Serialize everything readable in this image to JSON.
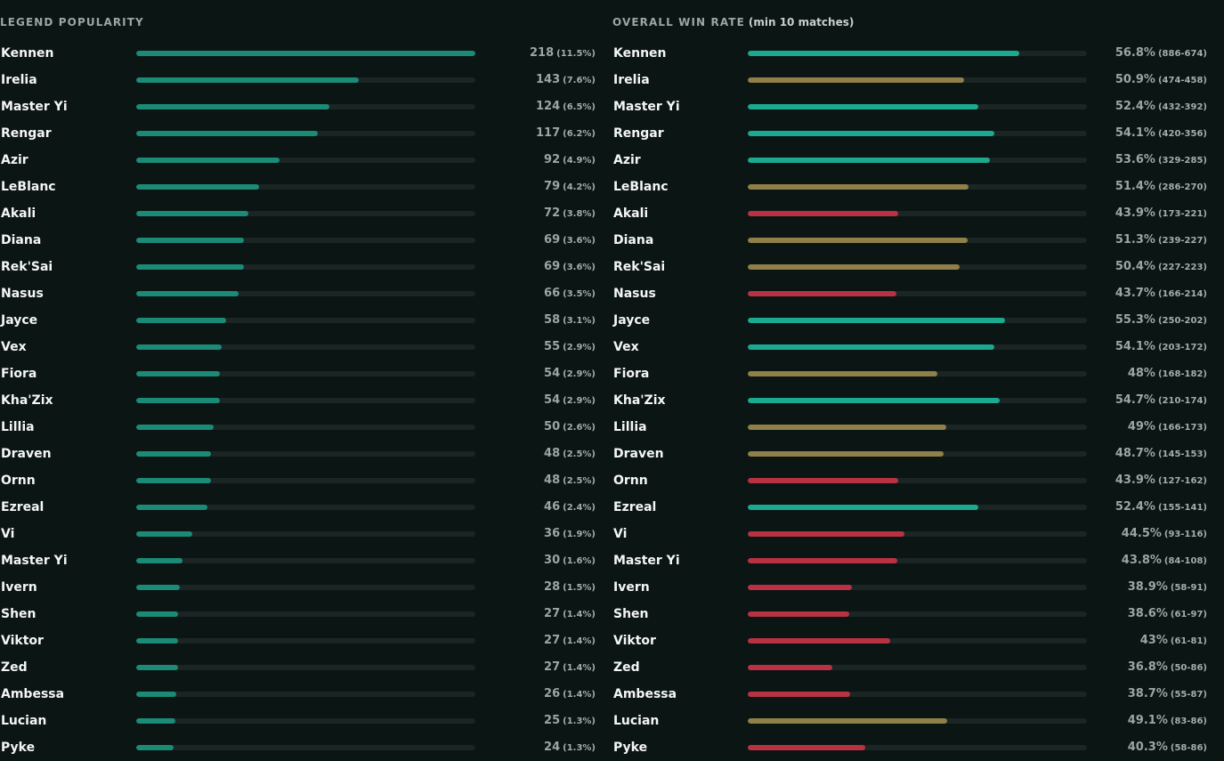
{
  "colors": {
    "background": "#0b1513",
    "track": "#1b2624",
    "popularity_bar": "#1b8a77",
    "win_high": "#1ba98f",
    "win_mid": "#8f7f48",
    "win_low": "#b83243"
  },
  "popularity": {
    "title": "LEGEND POPULARITY",
    "max_value": 218,
    "rows": [
      {
        "name": "Kennen",
        "value": 218,
        "count": "218",
        "pct": "(11.5%)"
      },
      {
        "name": "Irelia",
        "value": 143,
        "count": "143",
        "pct": "(7.6%)"
      },
      {
        "name": "Master Yi",
        "value": 124,
        "count": "124",
        "pct": "(6.5%)"
      },
      {
        "name": "Rengar",
        "value": 117,
        "count": "117",
        "pct": "(6.2%)"
      },
      {
        "name": "Azir",
        "value": 92,
        "count": "92",
        "pct": "(4.9%)"
      },
      {
        "name": "LeBlanc",
        "value": 79,
        "count": "79",
        "pct": "(4.2%)"
      },
      {
        "name": "Akali",
        "value": 72,
        "count": "72",
        "pct": "(3.8%)"
      },
      {
        "name": "Diana",
        "value": 69,
        "count": "69",
        "pct": "(3.6%)"
      },
      {
        "name": "Rek'Sai",
        "value": 69,
        "count": "69",
        "pct": "(3.6%)"
      },
      {
        "name": "Nasus",
        "value": 66,
        "count": "66",
        "pct": "(3.5%)"
      },
      {
        "name": "Jayce",
        "value": 58,
        "count": "58",
        "pct": "(3.1%)"
      },
      {
        "name": "Vex",
        "value": 55,
        "count": "55",
        "pct": "(2.9%)"
      },
      {
        "name": "Fiora",
        "value": 54,
        "count": "54",
        "pct": "(2.9%)"
      },
      {
        "name": "Kha'Zix",
        "value": 54,
        "count": "54",
        "pct": "(2.9%)"
      },
      {
        "name": "Lillia",
        "value": 50,
        "count": "50",
        "pct": "(2.6%)"
      },
      {
        "name": "Draven",
        "value": 48,
        "count": "48",
        "pct": "(2.5%)"
      },
      {
        "name": "Ornn",
        "value": 48,
        "count": "48",
        "pct": "(2.5%)"
      },
      {
        "name": "Ezreal",
        "value": 46,
        "count": "46",
        "pct": "(2.4%)"
      },
      {
        "name": "Vi",
        "value": 36,
        "count": "36",
        "pct": "(1.9%)"
      },
      {
        "name": "Master Yi",
        "value": 30,
        "count": "30",
        "pct": "(1.6%)"
      },
      {
        "name": "Ivern",
        "value": 28,
        "count": "28",
        "pct": "(1.5%)"
      },
      {
        "name": "Shen",
        "value": 27,
        "count": "27",
        "pct": "(1.4%)"
      },
      {
        "name": "Viktor",
        "value": 27,
        "count": "27",
        "pct": "(1.4%)"
      },
      {
        "name": "Zed",
        "value": 27,
        "count": "27",
        "pct": "(1.4%)"
      },
      {
        "name": "Ambessa",
        "value": 26,
        "count": "26",
        "pct": "(1.4%)"
      },
      {
        "name": "Lucian",
        "value": 25,
        "count": "25",
        "pct": "(1.3%)"
      },
      {
        "name": "Pyke",
        "value": 24,
        "count": "24",
        "pct": "(1.3%)"
      }
    ]
  },
  "winrate": {
    "title": "OVERALL WIN RATE",
    "subtitle": "(min 10 matches)",
    "rows": [
      {
        "name": "Kennen",
        "value": 56.8,
        "rate": "56.8%",
        "record": "(886-674)"
      },
      {
        "name": "Irelia",
        "value": 50.9,
        "rate": "50.9%",
        "record": "(474-458)"
      },
      {
        "name": "Master Yi",
        "value": 52.4,
        "rate": "52.4%",
        "record": "(432-392)"
      },
      {
        "name": "Rengar",
        "value": 54.1,
        "rate": "54.1%",
        "record": "(420-356)"
      },
      {
        "name": "Azir",
        "value": 53.6,
        "rate": "53.6%",
        "record": "(329-285)"
      },
      {
        "name": "LeBlanc",
        "value": 51.4,
        "rate": "51.4%",
        "record": "(286-270)"
      },
      {
        "name": "Akali",
        "value": 43.9,
        "rate": "43.9%",
        "record": "(173-221)"
      },
      {
        "name": "Diana",
        "value": 51.3,
        "rate": "51.3%",
        "record": "(239-227)"
      },
      {
        "name": "Rek'Sai",
        "value": 50.4,
        "rate": "50.4%",
        "record": "(227-223)"
      },
      {
        "name": "Nasus",
        "value": 43.7,
        "rate": "43.7%",
        "record": "(166-214)"
      },
      {
        "name": "Jayce",
        "value": 55.3,
        "rate": "55.3%",
        "record": "(250-202)"
      },
      {
        "name": "Vex",
        "value": 54.1,
        "rate": "54.1%",
        "record": "(203-172)"
      },
      {
        "name": "Fiora",
        "value": 48,
        "rate": "48%",
        "record": "(168-182)"
      },
      {
        "name": "Kha'Zix",
        "value": 54.7,
        "rate": "54.7%",
        "record": "(210-174)"
      },
      {
        "name": "Lillia",
        "value": 49,
        "rate": "49%",
        "record": "(166-173)"
      },
      {
        "name": "Draven",
        "value": 48.7,
        "rate": "48.7%",
        "record": "(145-153)"
      },
      {
        "name": "Ornn",
        "value": 43.9,
        "rate": "43.9%",
        "record": "(127-162)"
      },
      {
        "name": "Ezreal",
        "value": 52.4,
        "rate": "52.4%",
        "record": "(155-141)"
      },
      {
        "name": "Vi",
        "value": 44.5,
        "rate": "44.5%",
        "record": "(93-116)"
      },
      {
        "name": "Master Yi",
        "value": 43.8,
        "rate": "43.8%",
        "record": "(84-108)"
      },
      {
        "name": "Ivern",
        "value": 38.9,
        "rate": "38.9%",
        "record": "(58-91)"
      },
      {
        "name": "Shen",
        "value": 38.6,
        "rate": "38.6%",
        "record": "(61-97)"
      },
      {
        "name": "Viktor",
        "value": 43,
        "rate": "43%",
        "record": "(61-81)"
      },
      {
        "name": "Zed",
        "value": 36.8,
        "rate": "36.8%",
        "record": "(50-86)"
      },
      {
        "name": "Ambessa",
        "value": 38.7,
        "rate": "38.7%",
        "record": "(55-87)"
      },
      {
        "name": "Lucian",
        "value": 49.1,
        "rate": "49.1%",
        "record": "(83-86)"
      },
      {
        "name": "Pyke",
        "value": 40.3,
        "rate": "40.3%",
        "record": "(58-86)"
      }
    ]
  }
}
